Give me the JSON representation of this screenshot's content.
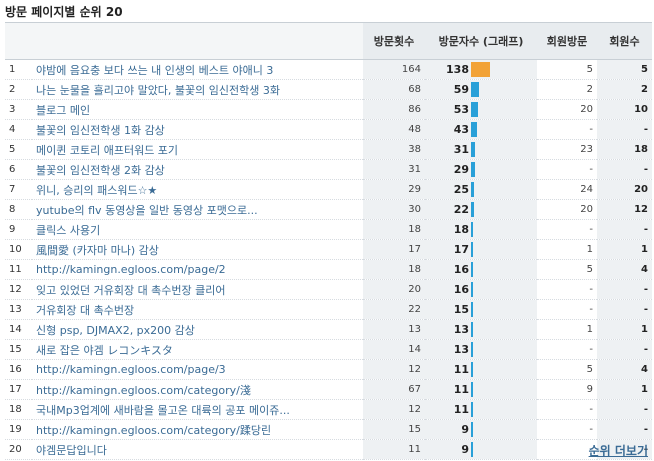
{
  "title": "방문 페이지별 순위 20",
  "headers": {
    "visits": "방문횟수",
    "visitors": "방문자수 (그래프)",
    "member_visits": "회원방문",
    "members": "회원수"
  },
  "more_label": "순위 더보기",
  "bar_colors": {
    "top": "#f2a236",
    "normal": "#29a0d8"
  },
  "max_visitors": 138,
  "rows": [
    {
      "rank": "1",
      "page": "야밤에 음요충 보다 쓰는 내 인생의 베스트 야애니 3",
      "visits": "164",
      "visitors": "138",
      "member_visits": "5",
      "members": "5"
    },
    {
      "rank": "2",
      "page": "나는 눈물을 흘리고야 말았다, 불꽃의 임신전학생 3화",
      "visits": "68",
      "visitors": "59",
      "member_visits": "2",
      "members": "2"
    },
    {
      "rank": "3",
      "page": "블로그 메인",
      "visits": "86",
      "visitors": "53",
      "member_visits": "20",
      "members": "10"
    },
    {
      "rank": "4",
      "page": "불꽃의 임신전학생 1화 감상",
      "visits": "48",
      "visitors": "43",
      "member_visits": "-",
      "members": "-"
    },
    {
      "rank": "5",
      "page": "메이퀸 코토리 애프터워드 포기",
      "visits": "38",
      "visitors": "31",
      "member_visits": "23",
      "members": "18"
    },
    {
      "rank": "6",
      "page": "불꽃의 임신전학생 2화 감상",
      "visits": "31",
      "visitors": "29",
      "member_visits": "-",
      "members": "-"
    },
    {
      "rank": "7",
      "page": "위니, 승리의 패스워드☆★",
      "visits": "29",
      "visitors": "25",
      "member_visits": "24",
      "members": "20"
    },
    {
      "rank": "8",
      "page": "yutube의 flv 동영상을 일반 동영상 포맷으로...",
      "visits": "30",
      "visitors": "22",
      "member_visits": "20",
      "members": "12"
    },
    {
      "rank": "9",
      "page": "클릭스 사용기",
      "visits": "18",
      "visitors": "18",
      "member_visits": "-",
      "members": "-"
    },
    {
      "rank": "10",
      "page": "風間愛 (카자마 마나) 감상",
      "visits": "17",
      "visitors": "17",
      "member_visits": "1",
      "members": "1"
    },
    {
      "rank": "11",
      "page": "http://kamingn.egloos.com/page/2",
      "visits": "18",
      "visitors": "16",
      "member_visits": "5",
      "members": "4"
    },
    {
      "rank": "12",
      "page": "잊고 있었던 거유회장 대 촉수번장 클리어",
      "visits": "20",
      "visitors": "16",
      "member_visits": "-",
      "members": "-"
    },
    {
      "rank": "13",
      "page": "거유회장 대 촉수번장",
      "visits": "22",
      "visitors": "15",
      "member_visits": "-",
      "members": "-"
    },
    {
      "rank": "14",
      "page": "신형 psp, DJMAX2, px200 감상",
      "visits": "13",
      "visitors": "13",
      "member_visits": "1",
      "members": "1"
    },
    {
      "rank": "15",
      "page": "새로 잡은 야겜 レコンキスタ",
      "visits": "14",
      "visitors": "13",
      "member_visits": "-",
      "members": "-"
    },
    {
      "rank": "16",
      "page": "http://kamingn.egloos.com/page/3",
      "visits": "12",
      "visitors": "11",
      "member_visits": "5",
      "members": "4"
    },
    {
      "rank": "17",
      "page": "http://kamingn.egloos.com/category/淺",
      "visits": "67",
      "visitors": "11",
      "member_visits": "9",
      "members": "1"
    },
    {
      "rank": "18",
      "page": "국내Mp3업계에 새바람을 몰고온 대륙의 공포 메이쥬...",
      "visits": "12",
      "visitors": "11",
      "member_visits": "-",
      "members": "-"
    },
    {
      "rank": "19",
      "page": "http://kamingn.egloos.com/category/蹂당린",
      "visits": "15",
      "visitors": "9",
      "member_visits": "-",
      "members": "-"
    },
    {
      "rank": "20",
      "page": "야겜문답입니다",
      "visits": "11",
      "visitors": "9",
      "member_visits": "-",
      "members": "-"
    }
  ]
}
